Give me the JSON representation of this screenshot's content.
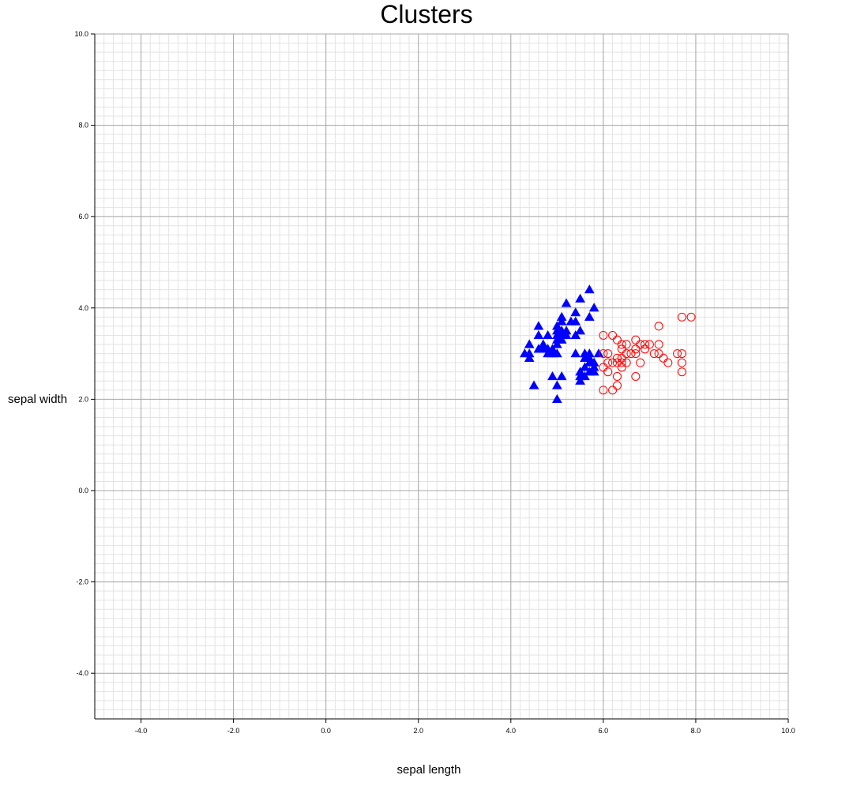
{
  "chart_data": {
    "type": "scatter",
    "title": "Clusters",
    "xlabel": "sepal length",
    "ylabel": "sepal width",
    "xlim": [
      -5,
      10
    ],
    "ylim": [
      -5,
      10
    ],
    "xticks": [
      "-4.0",
      "-2.0",
      "0.0",
      "2.0",
      "4.0",
      "6.0",
      "8.0",
      "10.0"
    ],
    "yticks": [
      "-4.0",
      "-2.0",
      "0.0",
      "2.0",
      "4.0",
      "6.0",
      "8.0",
      "10.0"
    ],
    "grid": true,
    "legend": "none",
    "series": [
      {
        "color": "#0000ff",
        "marker": "filled-triangle",
        "x": [
          4.3,
          4.4,
          4.4,
          4.4,
          4.5,
          4.6,
          4.6,
          4.6,
          4.7,
          4.7,
          4.8,
          4.8,
          4.8,
          4.9,
          4.9,
          4.9,
          5.0,
          5.0,
          5.0,
          5.0,
          5.0,
          5.0,
          5.0,
          5.0,
          5.1,
          5.1,
          5.1,
          5.1,
          5.1,
          5.1,
          5.2,
          5.2,
          5.2,
          5.3,
          5.4,
          5.4,
          5.4,
          5.4,
          5.5,
          5.5,
          5.5,
          5.5,
          5.5,
          5.6,
          5.6,
          5.6,
          5.6,
          5.7,
          5.7,
          5.7,
          5.7,
          5.7,
          5.7,
          5.8,
          5.8,
          5.8,
          5.8,
          5.9
        ],
        "y": [
          3.0,
          2.9,
          3.0,
          3.2,
          2.3,
          3.1,
          3.4,
          3.6,
          3.2,
          3.1,
          3.0,
          3.4,
          3.1,
          3.0,
          3.1,
          2.5,
          2.0,
          3.0,
          3.2,
          3.3,
          3.4,
          3.5,
          3.6,
          2.3,
          3.5,
          3.8,
          3.7,
          3.3,
          3.4,
          2.5,
          3.5,
          3.4,
          4.1,
          3.7,
          3.9,
          3.4,
          3.7,
          3.0,
          4.2,
          3.5,
          2.6,
          2.4,
          2.5,
          3.0,
          2.9,
          2.7,
          2.5,
          4.4,
          3.8,
          2.8,
          2.9,
          3.0,
          2.6,
          4.0,
          2.7,
          2.8,
          2.6,
          3.0
        ]
      },
      {
        "color": "#ff0000",
        "marker": "open-circle",
        "x": [
          6.0,
          6.0,
          6.0,
          6.0,
          6.1,
          6.1,
          6.1,
          6.2,
          6.2,
          6.2,
          6.3,
          6.3,
          6.3,
          6.3,
          6.3,
          6.4,
          6.4,
          6.4,
          6.4,
          6.4,
          6.5,
          6.5,
          6.5,
          6.6,
          6.7,
          6.7,
          6.7,
          6.7,
          6.8,
          6.8,
          6.9,
          6.9,
          7.0,
          7.1,
          7.2,
          7.2,
          7.2,
          7.3,
          7.4,
          7.6,
          7.7,
          7.7,
          7.7,
          7.7,
          7.9
        ],
        "y": [
          2.2,
          2.7,
          3.0,
          3.4,
          2.6,
          2.8,
          3.0,
          2.2,
          2.8,
          3.4,
          2.3,
          2.5,
          2.8,
          2.9,
          3.3,
          2.7,
          2.8,
          2.9,
          3.1,
          3.2,
          2.8,
          3.0,
          3.2,
          3.0,
          2.5,
          3.0,
          3.1,
          3.3,
          2.8,
          3.2,
          3.1,
          3.2,
          3.2,
          3.0,
          3.0,
          3.2,
          3.6,
          2.9,
          2.8,
          3.0,
          2.6,
          2.8,
          3.0,
          3.8,
          3.8
        ]
      }
    ]
  }
}
